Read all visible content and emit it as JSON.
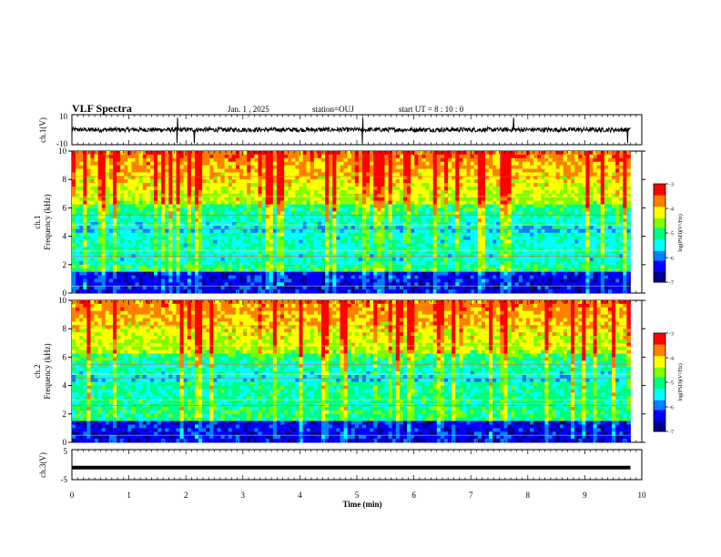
{
  "header": {
    "title": "VLF Spectra",
    "date": "Jan. 1 , 2025",
    "station": "station=OUJ",
    "start": "start UT =  8 : 10 : 0"
  },
  "colors": {
    "spectrogram_scale": [
      "#00008c",
      "#0000ff",
      "#0080ff",
      "#00ffff",
      "#00ff80",
      "#80ff00",
      "#ffff00",
      "#ff8000",
      "#ff0000"
    ],
    "trace": "#000000"
  },
  "chart_data": [
    {
      "type": "line",
      "panel": "ch1-waveform",
      "ylabel": "ch.1(V)",
      "ylim": [
        -10,
        10
      ],
      "yticks": [
        "10",
        "-10"
      ],
      "xlim": [
        0,
        10
      ],
      "description_values": {
        "baseline": 0,
        "typical_amplitude": 1.5,
        "spikes_at_min": [
          1.85,
          2.15,
          5.1,
          7.75,
          9.75
        ]
      }
    },
    {
      "type": "heatmap",
      "panel": "ch1-spectrogram",
      "ylabel": "ch.1\nFrequency (kHz)",
      "ylabel_line1": "ch.1",
      "ylabel_line2": "Frequency (kHz)",
      "ylim": [
        0,
        10
      ],
      "yticks": [
        "0",
        "2",
        "4",
        "6",
        "8",
        "10"
      ],
      "xlim": [
        0,
        9.8
      ],
      "colorbar": {
        "label": "log(PSD)(V²/Hz)",
        "range": [
          -7,
          -3
        ],
        "ticks": [
          "-3",
          "-4",
          "-5",
          "-6",
          "-7"
        ]
      }
    },
    {
      "type": "heatmap",
      "panel": "ch2-spectrogram",
      "ylabel_line1": "ch.2",
      "ylabel_line2": "Frequency (kHz)",
      "ylim": [
        0,
        10
      ],
      "yticks": [
        "0",
        "2",
        "4",
        "6",
        "8",
        "10"
      ],
      "xlim": [
        0,
        9.8
      ],
      "colorbar": {
        "label": "log(PSD)(V²/Hz)",
        "range": [
          -7,
          -3
        ],
        "ticks": [
          "-3",
          "-4",
          "-5",
          "-6",
          "-7"
        ]
      }
    },
    {
      "type": "line",
      "panel": "ch3-waveform",
      "ylabel": "ch.3(V)",
      "ylim": [
        -5,
        5
      ],
      "yticks": [
        "5",
        "-5"
      ],
      "xlim": [
        0,
        10
      ],
      "description_values": {
        "constant_level": -1
      }
    }
  ],
  "x_axis": {
    "label": "Time (min)",
    "range": [
      0,
      10
    ],
    "ticks": [
      "0",
      "1",
      "2",
      "3",
      "4",
      "5",
      "6",
      "7",
      "8",
      "9",
      "10"
    ]
  }
}
